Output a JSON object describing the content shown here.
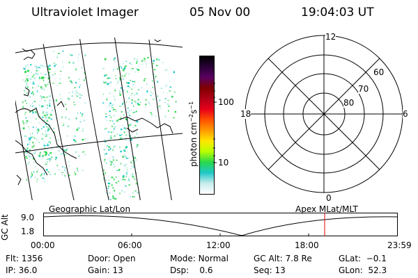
{
  "header": {
    "instrument": "Ultraviolet Imager",
    "date": "05 Nov 00",
    "time": "19:04:03 UT"
  },
  "colorbar": {
    "unit_label": "photon cm",
    "unit_sup1": "−2",
    "unit_mid": "s",
    "unit_sup2": "−1",
    "ticks": [
      "100",
      "10"
    ],
    "colors": [
      "#000000",
      "#2a0038",
      "#5a0060",
      "#800000",
      "#b00018",
      "#e8001a",
      "#ff5000",
      "#ff9a00",
      "#ffe600",
      "#b8ff00",
      "#2ad84a",
      "#1ec8c8",
      "#c8ecec",
      "#ffffff"
    ]
  },
  "polar": {
    "mlt_labels": [
      "12",
      "18",
      "6",
      "0"
    ],
    "lat_labels": [
      "60",
      "70",
      "80"
    ]
  },
  "map_labels": {
    "left": "Geographic Lat/Lon",
    "right": "Apex MLat/MLT"
  },
  "alt_panel": {
    "axis_title": "GC Alt",
    "y_ticks": [
      "9.0",
      "1.8"
    ],
    "x_ticks": [
      "00:00",
      "06:00",
      "12:00",
      "18:00",
      "23:59"
    ],
    "marker_color": "#e00000"
  },
  "status": {
    "flt_label": "Flt:",
    "flt_value": "1356",
    "ip_label": "IP:",
    "ip_value": "36.0",
    "door_label": "Door:",
    "door_value": "Open",
    "gain_label": "Gain:",
    "gain_value": "13",
    "mode_label": "Mode:",
    "mode_value": "Normal",
    "dsp_label": "Dsp:",
    "dsp_value": "0.6",
    "gcalt_label": "GC Alt:",
    "gcalt_value": "7.8 Re",
    "seq_label": "Seq:",
    "seq_value": "13",
    "glat_label": "GLat:",
    "glat_value": "−0.1",
    "glon_label": "GLon:",
    "glon_value": "52.3"
  }
}
